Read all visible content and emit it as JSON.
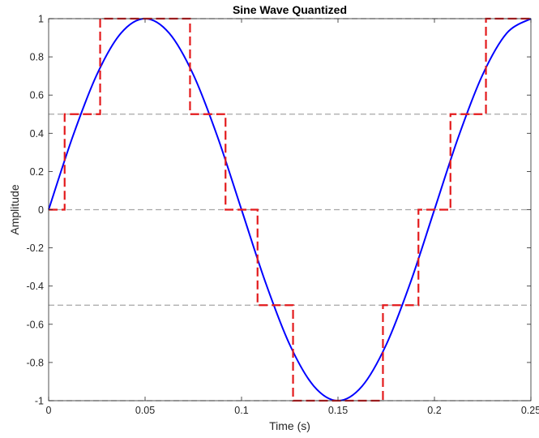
{
  "chart_data": {
    "type": "line",
    "title": "Sine Wave Quantized",
    "xlabel": "Time (s)",
    "ylabel": "Amplitude",
    "xlim": [
      0,
      0.25
    ],
    "ylim": [
      -1,
      1
    ],
    "x_ticks": [
      0,
      0.05,
      0.1,
      0.15,
      0.2,
      0.25
    ],
    "x_tick_labels": [
      "0",
      "0.05",
      "0.1",
      "0.15",
      "0.2",
      "0.25"
    ],
    "y_ticks": [
      1,
      0.8,
      0.6,
      0.4,
      0.2,
      0,
      -0.2,
      -0.4,
      -0.6,
      -0.8,
      -1
    ],
    "y_tick_labels": [
      "1",
      "0.8",
      "0.6",
      "0.4",
      "0.2",
      "0",
      "-0.2",
      "-0.4",
      "-0.6",
      "-0.8",
      "-1"
    ],
    "grid": false,
    "quantization_levels": [
      1,
      0.5,
      0,
      -0.5,
      -1
    ],
    "series": [
      {
        "style": "solid",
        "color": "#0000ff",
        "x": [
          0,
          0.0125,
          0.025,
          0.0375,
          0.05,
          0.0625,
          0.075,
          0.0875,
          0.1,
          0.1125,
          0.125,
          0.1375,
          0.15,
          0.1625,
          0.175,
          0.1875,
          0.2,
          0.2125,
          0.225,
          0.2375,
          0.25
        ],
        "y": [
          0,
          0.383,
          0.707,
          0.924,
          1,
          0.924,
          0.707,
          0.383,
          0,
          -0.383,
          -0.707,
          -0.924,
          -1,
          -0.924,
          -0.707,
          -0.383,
          0,
          0.383,
          0.707,
          0.924,
          1
        ]
      },
      {
        "style": "dashed",
        "color": "#e31a1c",
        "x": [
          0,
          0.0083,
          0.0083,
          0.0267,
          0.0267,
          0.0733,
          0.0733,
          0.0917,
          0.0917,
          0.1083,
          0.1083,
          0.1267,
          0.1267,
          0.1733,
          0.1733,
          0.1917,
          0.1917,
          0.2083,
          0.2083,
          0.2267,
          0.2267,
          0.25
        ],
        "y": [
          0,
          0,
          0.5,
          0.5,
          1,
          1,
          0.5,
          0.5,
          0,
          0,
          -0.5,
          -0.5,
          -1,
          -1,
          -0.5,
          -0.5,
          0,
          0,
          0.5,
          0.5,
          1,
          1
        ]
      }
    ]
  }
}
